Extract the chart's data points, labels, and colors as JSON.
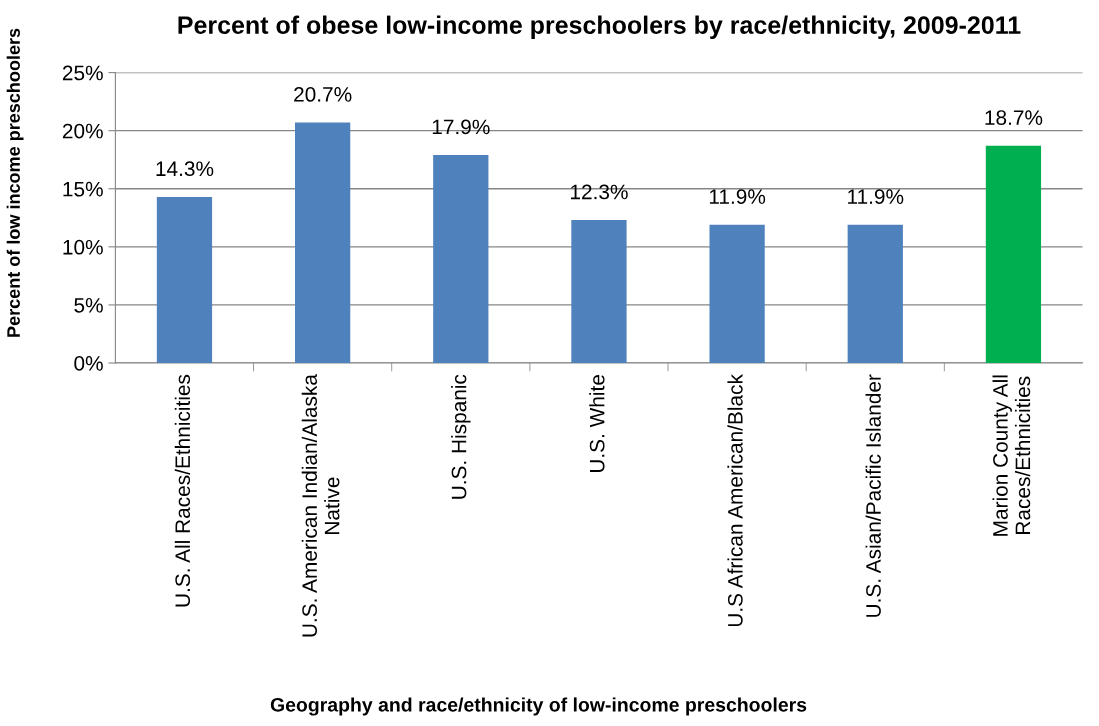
{
  "chart_data": {
    "type": "bar",
    "title": "Percent of obese low-income preschoolers by race/ethnicity, 2009-2011",
    "xlabel": "Geography and race/ethnicity of low-income preschoolers",
    "ylabel": "Percent of low income preschoolers",
    "categories": [
      "U.S. All Races/Ethnicities",
      "U.S. American Indian/Alaska\nNative",
      "U.S. Hispanic",
      "U.S. White",
      "U.S African American/Black",
      "U.S. Asian/Pacific Islander",
      "Marion County All\nRaces/Ethnicities"
    ],
    "values": [
      14.3,
      20.7,
      17.9,
      12.3,
      11.9,
      11.9,
      18.7
    ],
    "value_labels": [
      "14.3%",
      "20.7%",
      "17.9%",
      "12.3%",
      "11.9%",
      "11.9%",
      "18.7%"
    ],
    "colors": [
      "#4f81bd",
      "#4f81bd",
      "#4f81bd",
      "#4f81bd",
      "#4f81bd",
      "#4f81bd",
      "#00b050"
    ],
    "ylim": [
      0,
      25
    ],
    "yticks": [
      {
        "value": 0,
        "label": "0%"
      },
      {
        "value": 5,
        "label": "5%"
      },
      {
        "value": 10,
        "label": "10%"
      },
      {
        "value": 15,
        "label": "15%"
      },
      {
        "value": 20,
        "label": "20%"
      },
      {
        "value": 25,
        "label": "25%"
      }
    ],
    "grid": "y"
  }
}
